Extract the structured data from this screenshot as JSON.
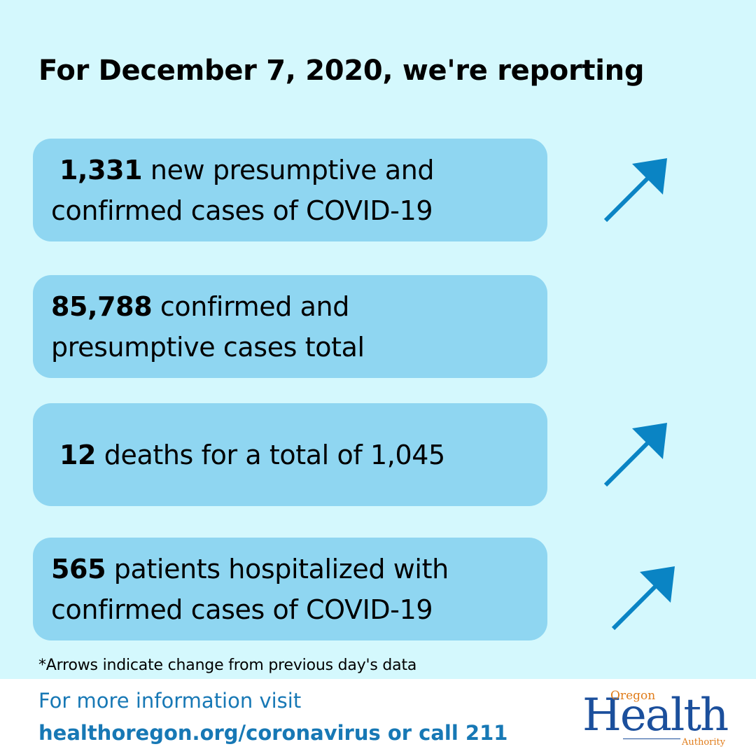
{
  "headline": "For December 7, 2020, we're reporting",
  "cards": [
    {
      "number": "1,331",
      "line1": " new presumptive and",
      "line2": "confirmed cases of COVID-19",
      "arrow": "up-right-arrow-icon"
    },
    {
      "number": "85,788",
      "line1": " confirmed and",
      "line2": "presumptive cases total",
      "arrow": null
    },
    {
      "number": "12",
      "line1": " deaths for a total of 1,045",
      "line2": "",
      "arrow": "up-right-arrow-icon"
    },
    {
      "number": "565",
      "line1": " patients hospitalized with",
      "line2": "confirmed cases of COVID-19",
      "arrow": "up-right-arrow-icon"
    }
  ],
  "footnote": "*Arrows indicate change from previous day's data",
  "footer": {
    "line1": "For more information visit",
    "line2": "healthoregon.org/coronavirus or call 211"
  },
  "logo": {
    "oregon": "Oregon",
    "health": "Health",
    "authority": "Authority"
  },
  "colors": {
    "background": "#d4f8fd",
    "card": "#8fd6f1",
    "arrow": "#0a84c4",
    "footer_text": "#1778b5"
  }
}
